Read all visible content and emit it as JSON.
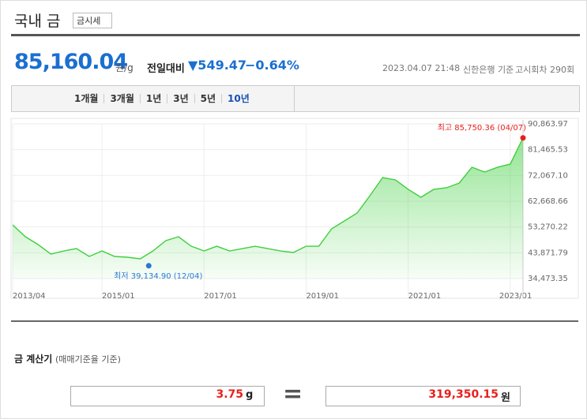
{
  "header": {
    "title": "국내 금",
    "tag": "금시세"
  },
  "price": {
    "value": "85,160.04",
    "unit": "원/g",
    "compare_label": "전일대비",
    "change": "▼549.47",
    "change_pct": "−0.64%",
    "date": "2023.04.07 21:48",
    "source": "신한은행 기준",
    "round": "고시회차 290회"
  },
  "tabs": [
    "1개월",
    "3개월",
    "1년",
    "3년",
    "5년",
    "10년"
  ],
  "chart_data": {
    "type": "line",
    "color": "#3fcf3f",
    "x": [
      "2013/04",
      "2013/07",
      "2013/10",
      "2014/01",
      "2014/04",
      "2014/07",
      "2014/10",
      "2015/01",
      "2015/04",
      "2015/07",
      "2015/10",
      "2016/01",
      "2016/04",
      "2016/07",
      "2016/10",
      "2017/01",
      "2017/04",
      "2017/07",
      "2017/10",
      "2018/01",
      "2018/04",
      "2018/07",
      "2018/10",
      "2019/01",
      "2019/04",
      "2019/07",
      "2019/10",
      "2020/01",
      "2020/04",
      "2020/07",
      "2020/10",
      "2021/01",
      "2021/04",
      "2021/07",
      "2021/10",
      "2022/01",
      "2022/04",
      "2022/07",
      "2022/10",
      "2023/01",
      "2023/04"
    ],
    "values": [
      54040,
      49720,
      46840,
      43390,
      44540,
      45400,
      42530,
      44540,
      42530,
      42240,
      41670,
      44540,
      48280,
      49720,
      46260,
      44540,
      46260,
      44540,
      45400,
      46260,
      45400,
      44540,
      43970,
      46260,
      46260,
      52600,
      55480,
      58350,
      64680,
      71300,
      70440,
      66990,
      64110,
      66990,
      67560,
      69290,
      75050,
      73320,
      75050,
      76200,
      85750.36
    ],
    "xticks": [
      "2013/04",
      "2015/01",
      "2017/01",
      "2019/01",
      "2021/01",
      "2023/01"
    ],
    "ylim": [
      34473.35,
      90863.97
    ],
    "yticks": [
      {
        "value": 34473.35,
        "label": "34,473.35"
      },
      {
        "value": 43871.79,
        "label": "43,871.79"
      },
      {
        "value": 53270.22,
        "label": "53,270.22"
      },
      {
        "value": 62668.66,
        "label": "62,668.66"
      },
      {
        "value": 72067.1,
        "label": "72,067.10"
      },
      {
        "value": 81465.53,
        "label": "81,465.53"
      },
      {
        "value": 90863.97,
        "label": "90,863.97"
      }
    ],
    "grid": true,
    "annotations": [
      {
        "text": "최고 85,750.36 (04/07)",
        "x": "2023/04",
        "value": 85750.36,
        "color": "#e8201c"
      },
      {
        "text": "최저 39,134.90 (12/04)",
        "x": "2015/12",
        "value": 39134.9,
        "color": "#2a78d4"
      }
    ]
  },
  "calculator": {
    "title": "금 계산기",
    "note": "(매매기준율 기준)",
    "amount": "3.75",
    "amount_unit": "g",
    "equals": "=",
    "result": "319,350.15",
    "result_unit": "원"
  }
}
